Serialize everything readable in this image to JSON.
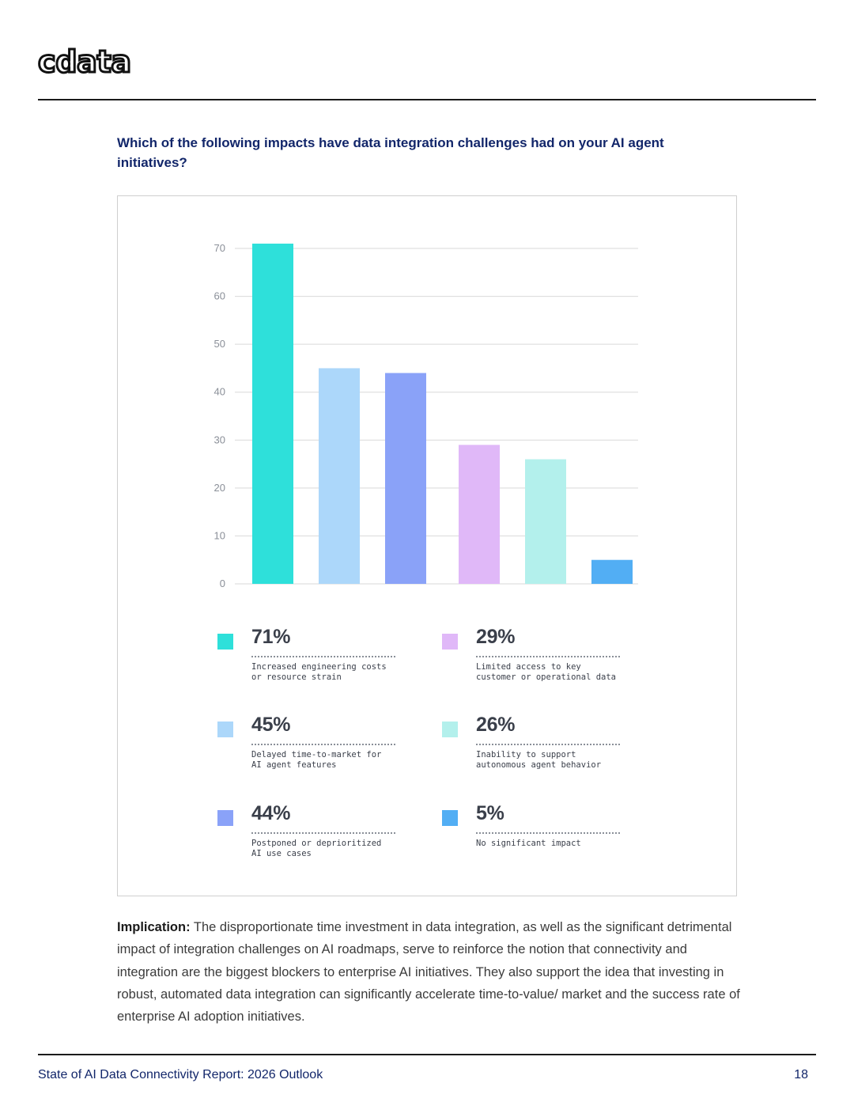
{
  "brand": {
    "logo_text": "cdata"
  },
  "question": "Which of the following impacts have data integration challenges had on your AI agent initiatives?",
  "colors": {
    "accent": "#12266a"
  },
  "chart_data": {
    "type": "bar",
    "title": "",
    "xlabel": "",
    "ylabel": "",
    "ylim": [
      0,
      70
    ],
    "yticks": [
      0,
      10,
      20,
      30,
      40,
      50,
      60,
      70
    ],
    "grid": true,
    "categories": [
      "Increased engineering costs or resource strain",
      "Delayed time-to-market for AI agent features",
      "Postponed or deprioritized AI use cases",
      "Limited access to key customer or operational data",
      "Inability to support autonomous agent behavior",
      "No significant impact"
    ],
    "values": [
      71,
      45,
      44,
      29,
      26,
      5
    ],
    "colors": [
      "#2ee0da",
      "#acd7fa",
      "#8aa2f8",
      "#e0b8f8",
      "#b3f0ec",
      "#52aef4"
    ]
  },
  "legend": [
    {
      "pct": "71%",
      "desc": "Increased engineering costs\nor resource strain",
      "color": "#2ee0da"
    },
    {
      "pct": "45%",
      "desc": "Delayed time-to-market for\nAI agent features",
      "color": "#acd7fa"
    },
    {
      "pct": "44%",
      "desc": "Postponed or deprioritized\nAI use cases",
      "color": "#8aa2f8"
    },
    {
      "pct": "29%",
      "desc": "Limited access to key\ncustomer or operational data",
      "color": "#e0b8f8"
    },
    {
      "pct": "26%",
      "desc": "Inability to support\nautonomous agent behavior",
      "color": "#b3f0ec"
    },
    {
      "pct": "5%",
      "desc": "No significant impact",
      "color": "#52aef4"
    }
  ],
  "implication": {
    "label": "Implication:",
    "text": " The disproportionate time investment in data integration, as well as the significant detrimental impact of integration challenges on AI roadmaps, serve to reinforce the notion that connectivity and integration are the biggest blockers to enterprise AI initiatives. They also support the idea that investing in robust, automated data integration can significantly accelerate time-to-value/ market and the success rate of enterprise AI adoption initiatives."
  },
  "footer": {
    "title": "State of AI Data Connectivity Report: 2026 Outlook",
    "page": "18"
  }
}
